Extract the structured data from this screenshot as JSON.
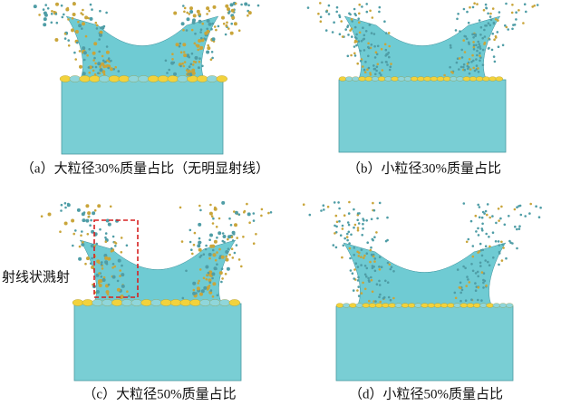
{
  "panels": [
    {
      "caption": "（a）大粒径30%质量占比（无明显射线）"
    },
    {
      "caption": "（b）小粒径30%质量占比"
    },
    {
      "caption": "（c）大粒径50%质量占比"
    },
    {
      "caption": "（d）小粒径50%质量占比"
    }
  ],
  "annotation": "射线状溅射"
}
